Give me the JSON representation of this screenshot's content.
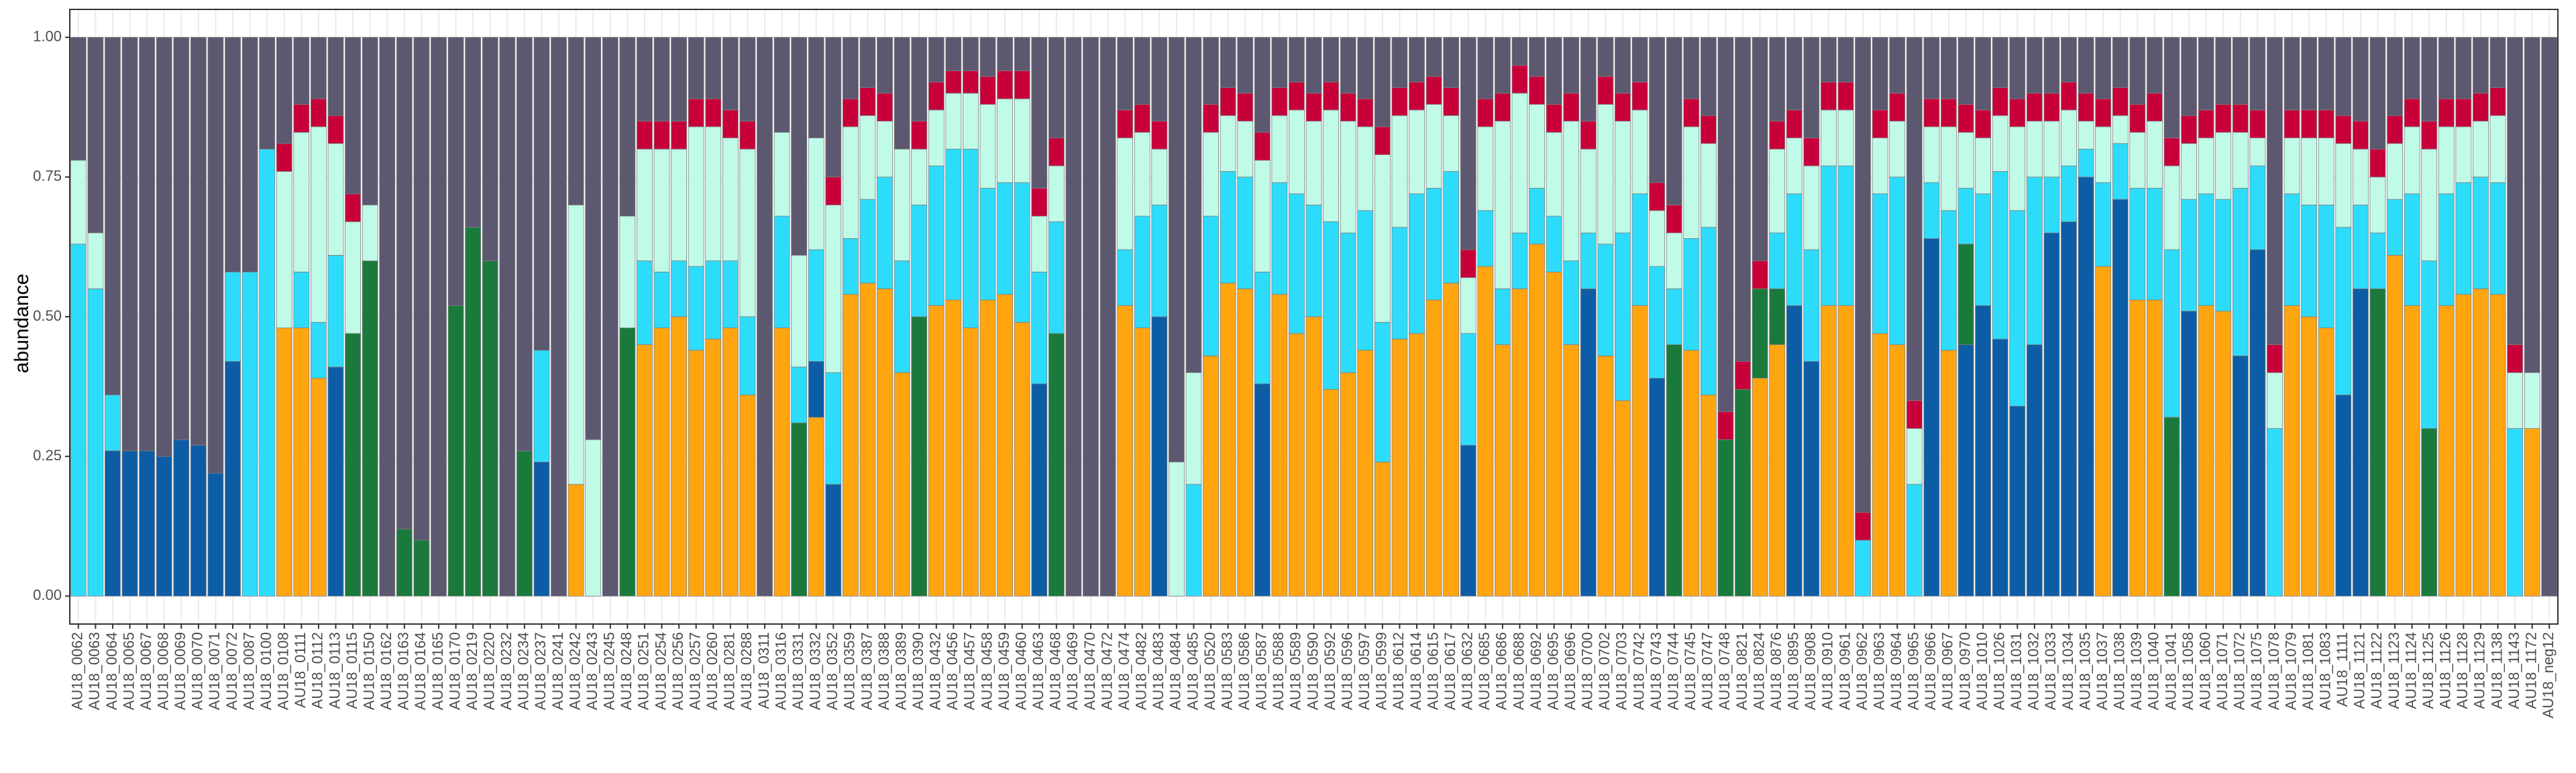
{
  "chart_data": {
    "type": "stacked_bar",
    "y_label": "abundance",
    "ylim": [
      -0.05,
      1.05
    ],
    "yticks": [
      {
        "value": 0,
        "label": "0.00"
      },
      {
        "value": 0.25,
        "label": "0.25"
      },
      {
        "value": 0.5,
        "label": "0.50"
      },
      {
        "value": 0.75,
        "label": "0.75"
      },
      {
        "value": 1,
        "label": "1.00"
      }
    ],
    "grid": true,
    "categories": [
      "AU18_0062",
      "AU18_0063",
      "AU18_0064",
      "AU18_0065",
      "AU18_0067",
      "AU18_0068",
      "AU18_0069",
      "AU18_0070",
      "AU18_0071",
      "AU18_0072",
      "AU18_0087",
      "AU18_0100",
      "AU18_0108",
      "AU18_0111",
      "AU18_0112",
      "AU18_0113",
      "AU18_0115",
      "AU18_0150",
      "AU18_0162",
      "AU18_0163",
      "AU18_0164",
      "AU18_0165",
      "AU18_0170",
      "AU18_0219",
      "AU18_0220",
      "AU18_0232",
      "AU18_0234",
      "AU18_0237",
      "AU18_0241",
      "AU18_0242",
      "AU18_0243",
      "AU18_0245",
      "AU18_0248",
      "AU18_0251",
      "AU18_0254",
      "AU18_0256",
      "AU18_0257",
      "AU18_0260",
      "AU18_0281",
      "AU18_0288",
      "AU18_0311",
      "AU18_0316",
      "AU18_0331",
      "AU18_0332",
      "AU18_0352",
      "AU18_0359",
      "AU18_0387",
      "AU18_0388",
      "AU18_0389",
      "AU18_0390",
      "AU18_0432",
      "AU18_0456",
      "AU18_0457",
      "AU18_0458",
      "AU18_0459",
      "AU18_0460",
      "AU18_0463",
      "AU18_0468",
      "AU18_0469",
      "AU18_0470",
      "AU18_0472",
      "AU18_0474",
      "AU18_0482",
      "AU18_0483",
      "AU18_0484",
      "AU18_0485",
      "AU18_0520",
      "AU18_0583",
      "AU18_0586",
      "AU18_0587",
      "AU18_0588",
      "AU18_0589",
      "AU18_0590",
      "AU18_0592",
      "AU18_0596",
      "AU18_0597",
      "AU18_0599",
      "AU18_0612",
      "AU18_0614",
      "AU18_0615",
      "AU18_0617",
      "AU18_0632",
      "AU18_0685",
      "AU18_0686",
      "AU18_0688",
      "AU18_0692",
      "AU18_0695",
      "AU18_0696",
      "AU18_0700",
      "AU18_0702",
      "AU18_0703",
      "AU18_0742",
      "AU18_0743",
      "AU18_0744",
      "AU18_0745",
      "AU18_0747",
      "AU18_0748",
      "AU18_0821",
      "AU18_0824",
      "AU18_0876",
      "AU18_0895",
      "AU18_0908",
      "AU18_0910",
      "AU18_0961",
      "AU18_0962",
      "AU18_0963",
      "AU18_0964",
      "AU18_0965",
      "AU18_0966",
      "AU18_0967",
      "AU18_0970",
      "AU18_1010",
      "AU18_1026",
      "AU18_1031",
      "AU18_1032",
      "AU18_1033",
      "AU18_1034",
      "AU18_1035",
      "AU18_1037",
      "AU18_1038",
      "AU18_1039",
      "AU18_1040",
      "AU18_1041",
      "AU18_1058",
      "AU18_1060",
      "AU18_1071",
      "AU18_1072",
      "AU18_1075",
      "AU18_1078",
      "AU18_1079",
      "AU18_1081",
      "AU18_1083",
      "AU18_1111",
      "AU18_1121",
      "AU18_1122",
      "AU18_1123",
      "AU18_1124",
      "AU18_1125",
      "AU18_1126",
      "AU18_1128",
      "AU18_1129",
      "AU18_1138",
      "AU18_1143",
      "AU18_1172",
      "AU18_neg12"
    ],
    "series": [
      {
        "color": "#ffa510",
        "values": [
          0,
          0,
          0,
          0,
          0,
          0,
          0,
          0,
          0,
          0,
          0,
          0,
          0.48,
          0.48,
          0.39,
          0,
          0,
          0,
          0,
          0,
          0,
          0,
          0,
          0,
          0,
          0,
          0,
          0,
          0,
          0.2,
          0,
          0,
          0,
          0.45,
          0.48,
          0.5,
          0.44,
          0.46,
          0.48,
          0.36,
          0,
          0.48,
          0,
          0.32,
          0,
          0.54,
          0.56,
          0.55,
          0.4,
          0,
          0.52,
          0.53,
          0.48,
          0.53,
          0.54,
          0.49,
          0,
          0,
          0,
          0,
          0,
          0.52,
          0.48,
          0,
          0,
          0,
          0.43,
          0.56,
          0.55,
          0,
          0.54,
          0.47,
          0.5,
          0.37,
          0.4,
          0.44,
          0.24,
          0.46,
          0.47,
          0.53,
          0.56,
          0,
          0.59,
          0.45,
          0.55,
          0.63,
          0.58,
          0.45,
          0,
          0.43,
          0.35,
          0.52,
          0,
          0,
          0.44,
          0.36,
          0,
          0,
          0.39,
          0.45,
          0,
          0,
          0.52,
          0.52,
          0,
          0.47,
          0.45,
          0,
          0,
          0.44,
          0,
          0,
          0,
          0,
          0,
          0,
          0,
          0,
          0.59,
          0,
          0.53,
          0.53,
          0,
          0,
          0.52,
          0.51,
          0,
          0,
          0,
          0.52,
          0.5,
          0.48,
          0,
          0,
          0,
          0.61,
          0.52,
          0,
          0.52,
          0.54,
          0.55,
          0.54,
          0,
          0.3,
          0
        ]
      },
      {
        "color": "#0c5da5",
        "values": [
          0,
          0,
          0.26,
          0.26,
          0.26,
          0.25,
          0.28,
          0.27,
          0.22,
          0.42,
          0,
          0,
          0,
          0,
          0,
          0.41,
          0,
          0,
          0,
          0,
          0,
          0,
          0,
          0,
          0,
          0,
          0,
          0.24,
          0,
          0,
          0,
          0,
          0,
          0,
          0,
          0,
          0,
          0,
          0,
          0,
          0,
          0,
          0,
          0.1,
          0.2,
          0,
          0,
          0,
          0,
          0,
          0,
          0,
          0,
          0,
          0,
          0,
          0.38,
          0,
          0,
          0,
          0,
          0,
          0,
          0.5,
          0,
          0,
          0,
          0,
          0,
          0.38,
          0,
          0,
          0,
          0,
          0,
          0,
          0,
          0,
          0,
          0,
          0,
          0.27,
          0,
          0,
          0,
          0,
          0,
          0,
          0.55,
          0,
          0,
          0,
          0.39,
          0,
          0,
          0,
          0,
          0,
          0,
          0,
          0.52,
          0.42,
          0,
          0,
          0,
          0,
          0,
          0,
          0.64,
          0,
          0.45,
          0.52,
          0.46,
          0.34,
          0.45,
          0.65,
          0.67,
          0.75,
          0,
          0.71,
          0,
          0,
          0,
          0.51,
          0,
          0,
          0.43,
          0.62,
          0,
          0,
          0,
          0,
          0.36,
          0.55,
          0,
          0,
          0,
          0,
          0,
          0,
          0,
          0,
          0,
          0,
          0
        ]
      },
      {
        "color": "#1a7a3c",
        "values": [
          0,
          0,
          0,
          0,
          0,
          0,
          0,
          0,
          0,
          0,
          0,
          0,
          0,
          0,
          0,
          0,
          0.47,
          0.6,
          0,
          0.12,
          0.1,
          0,
          0.52,
          0.66,
          0.6,
          0,
          0.26,
          0,
          0,
          0,
          0,
          0,
          0.48,
          0,
          0,
          0,
          0,
          0,
          0,
          0,
          0,
          0,
          0.31,
          0,
          0,
          0,
          0,
          0,
          0,
          0.5,
          0,
          0,
          0,
          0,
          0,
          0,
          0,
          0.47,
          0,
          0,
          0,
          0,
          0,
          0,
          0,
          0,
          0,
          0,
          0,
          0,
          0,
          0,
          0,
          0,
          0,
          0,
          0,
          0,
          0,
          0,
          0,
          0,
          0,
          0,
          0,
          0,
          0,
          0,
          0,
          0,
          0,
          0,
          0,
          0.45,
          0,
          0,
          0.28,
          0.37,
          0.16,
          0.1,
          0,
          0,
          0,
          0,
          0,
          0,
          0,
          0,
          0,
          0,
          0.18,
          0,
          0,
          0,
          0,
          0,
          0,
          0,
          0,
          0,
          0,
          0,
          0.32,
          0,
          0,
          0,
          0,
          0,
          0,
          0,
          0,
          0,
          0,
          0,
          0.55,
          0,
          0,
          0.3,
          0,
          0,
          0,
          0,
          0,
          0,
          0
        ]
      },
      {
        "color": "#2ddcfb",
        "values": [
          0.63,
          0.55,
          0.1,
          0,
          0,
          0,
          0,
          0,
          0,
          0.16,
          0.58,
          0.8,
          0,
          0.1,
          0.1,
          0.2,
          0,
          0,
          0,
          0,
          0,
          0,
          0,
          0,
          0,
          0,
          0,
          0.2,
          0,
          0,
          0,
          0,
          0,
          0.15,
          0.1,
          0.1,
          0.15,
          0.14,
          0.12,
          0.14,
          0,
          0.2,
          0.1,
          0.2,
          0.2,
          0.1,
          0.15,
          0.2,
          0.2,
          0.2,
          0.25,
          0.27,
          0.32,
          0.2,
          0.2,
          0.25,
          0.2,
          0.2,
          0,
          0,
          0,
          0.1,
          0.2,
          0.2,
          0,
          0.2,
          0.25,
          0.2,
          0.2,
          0.2,
          0.2,
          0.25,
          0.2,
          0.3,
          0.25,
          0.25,
          0.25,
          0.2,
          0.25,
          0.2,
          0.2,
          0.2,
          0.1,
          0.1,
          0.1,
          0.1,
          0.1,
          0.15,
          0.1,
          0.2,
          0.3,
          0.2,
          0.2,
          0.1,
          0.2,
          0.3,
          0,
          0,
          0,
          0.1,
          0.2,
          0.2,
          0.25,
          0.25,
          0.1,
          0.25,
          0.3,
          0.2,
          0.1,
          0.25,
          0.1,
          0.2,
          0.3,
          0.35,
          0.3,
          0.1,
          0.1,
          0.05,
          0.15,
          0.1,
          0.2,
          0.2,
          0.3,
          0.2,
          0.2,
          0.2,
          0.3,
          0.15,
          0.3,
          0.2,
          0.2,
          0.22,
          0.3,
          0.15,
          0.1,
          0.1,
          0.2,
          0.3,
          0.2,
          0.2,
          0.2,
          0.2,
          0.3,
          0,
          0
        ]
      },
      {
        "color": "#c0fbe8",
        "values": [
          0.15,
          0.1,
          0,
          0,
          0,
          0,
          0,
          0,
          0,
          0,
          0,
          0,
          0.28,
          0.25,
          0.35,
          0.2,
          0.2,
          0.1,
          0,
          0,
          0,
          0,
          0,
          0,
          0,
          0,
          0,
          0,
          0,
          0.5,
          0.28,
          0,
          0.2,
          0.2,
          0.22,
          0.2,
          0.25,
          0.24,
          0.22,
          0.3,
          0,
          0.15,
          0.2,
          0.2,
          0.3,
          0.2,
          0.15,
          0.1,
          0.2,
          0.1,
          0.1,
          0.1,
          0.1,
          0.15,
          0.15,
          0.15,
          0.1,
          0.1,
          0,
          0,
          0,
          0.2,
          0.15,
          0.1,
          0.24,
          0.2,
          0.15,
          0.1,
          0.1,
          0.2,
          0.12,
          0.15,
          0.15,
          0.2,
          0.2,
          0.15,
          0.3,
          0.2,
          0.15,
          0.15,
          0.1,
          0.1,
          0.15,
          0.3,
          0.25,
          0.15,
          0.15,
          0.25,
          0.15,
          0.25,
          0.2,
          0.15,
          0.1,
          0.1,
          0.2,
          0.15,
          0,
          0,
          0,
          0.15,
          0.1,
          0.15,
          0.1,
          0.1,
          0,
          0.1,
          0.1,
          0.1,
          0.1,
          0.15,
          0.1,
          0.1,
          0.1,
          0.15,
          0.1,
          0.1,
          0.1,
          0.05,
          0.1,
          0.05,
          0.1,
          0.12,
          0.15,
          0.1,
          0.1,
          0.12,
          0.1,
          0.05,
          0.1,
          0.1,
          0.12,
          0.12,
          0.15,
          0.1,
          0.1,
          0.1,
          0.12,
          0.2,
          0.12,
          0.1,
          0.1,
          0.12,
          0.1,
          0.1,
          0
        ]
      },
      {
        "color": "#c8003a",
        "values": [
          0,
          0,
          0,
          0,
          0,
          0,
          0,
          0,
          0,
          0,
          0,
          0,
          0.05,
          0.05,
          0.05,
          0.05,
          0.05,
          0,
          0,
          0,
          0,
          0,
          0,
          0,
          0,
          0,
          0,
          0,
          0,
          0,
          0,
          0,
          0,
          0.05,
          0.05,
          0.05,
          0.05,
          0.05,
          0.05,
          0.05,
          0,
          0,
          0,
          0,
          0.05,
          0.05,
          0.05,
          0.05,
          0,
          0.05,
          0.05,
          0.04,
          0.04,
          0.05,
          0.05,
          0.05,
          0.05,
          0.05,
          0,
          0,
          0,
          0.05,
          0.05,
          0.05,
          0,
          0,
          0.05,
          0.05,
          0.05,
          0.05,
          0.05,
          0.05,
          0.05,
          0.05,
          0.05,
          0.05,
          0.05,
          0.05,
          0.05,
          0.05,
          0.05,
          0.05,
          0.05,
          0.05,
          0.05,
          0.05,
          0.05,
          0.05,
          0.05,
          0.05,
          0.05,
          0.05,
          0.05,
          0.05,
          0.05,
          0.05,
          0.05,
          0.05,
          0.05,
          0.05,
          0.05,
          0.05,
          0.05,
          0.05,
          0.05,
          0.05,
          0.05,
          0.05,
          0.05,
          0.05,
          0.05,
          0.05,
          0.05,
          0.05,
          0.05,
          0.05,
          0.05,
          0.05,
          0.05,
          0.05,
          0.05,
          0.05,
          0.05,
          0.05,
          0.05,
          0.05,
          0.05,
          0.05,
          0.05,
          0.05,
          0.05,
          0.05,
          0.05,
          0.05,
          0.05,
          0.05,
          0.05,
          0.05,
          0.05,
          0.05,
          0.05,
          0.05,
          0.05,
          0,
          0
        ]
      },
      {
        "color": "#5b5870",
        "values": [
          0.22,
          0.35,
          0.64,
          0.74,
          0.74,
          0.75,
          0.72,
          0.73,
          0.78,
          0.42,
          0.42,
          0.2,
          0.19,
          0.12,
          0.11,
          0.14,
          0.28,
          0.3,
          1,
          0.88,
          0.9,
          1,
          0.48,
          0.34,
          0.4,
          1,
          0.74,
          0.56,
          1,
          0.3,
          0.72,
          1,
          0.32,
          0.15,
          0.15,
          0.15,
          0.11,
          0.11,
          0.13,
          0.15,
          1,
          0.17,
          0.39,
          0.18,
          0.25,
          0.11,
          0.09,
          0.1,
          0.2,
          0.15,
          0.08,
          0.06,
          0.06,
          0.07,
          0.06,
          0.06,
          0.27,
          0.18,
          1,
          1,
          1,
          0.13,
          0.12,
          0.15,
          0.76,
          0.6,
          0.12,
          0.09,
          0.1,
          0.17,
          0.09,
          0.08,
          0.1,
          0.08,
          0.1,
          0.11,
          0.16,
          0.09,
          0.08,
          0.07,
          0.09,
          0.38,
          0.11,
          0.1,
          0.05,
          0.07,
          0.12,
          0.1,
          0.15,
          0.07,
          0.1,
          0.08,
          0.26,
          0.3,
          0.11,
          0.14,
          0.67,
          0.58,
          0.4,
          0.15,
          0.13,
          0.18,
          0.08,
          0.08,
          0.85,
          0.13,
          0.1,
          0.65,
          0.11,
          0.11,
          0.12,
          0.13,
          0.09,
          0.11,
          0.1,
          0.1,
          0.08,
          0.1,
          0.11,
          0.09,
          0.12,
          0.1,
          0.18,
          0.14,
          0.13,
          0.12,
          0.12,
          0.13,
          0.55,
          0.13,
          0.13,
          0.13,
          0.14,
          0.15,
          0.2,
          0.14,
          0.11,
          0.15,
          0.11,
          0.11,
          0.1,
          0.09,
          0.55,
          0.6,
          1
        ]
      }
    ]
  }
}
